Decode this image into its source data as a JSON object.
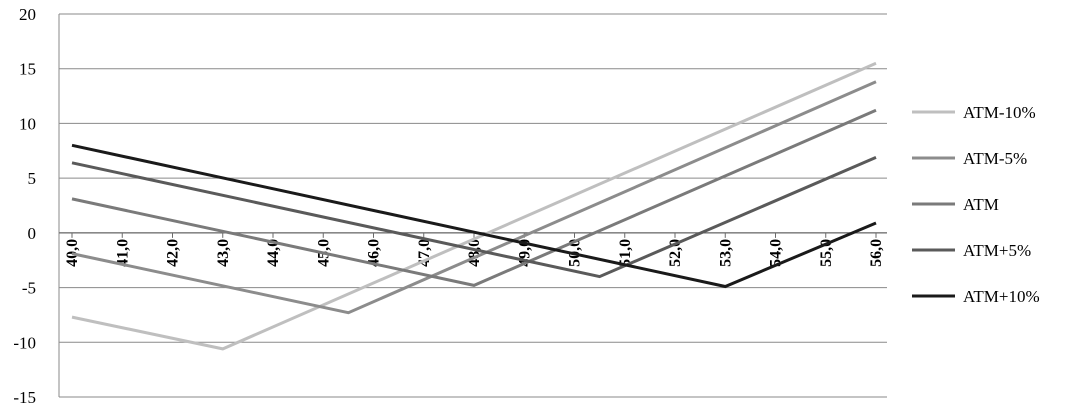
{
  "chart_data": {
    "type": "line",
    "title": "",
    "xlabel": "",
    "ylabel": "",
    "x": [
      40,
      41,
      42,
      43,
      44,
      45,
      46,
      47,
      48,
      49,
      50,
      51,
      52,
      53,
      54,
      55,
      56
    ],
    "x_tick_labels": [
      "40,0",
      "41,0",
      "42,0",
      "43,0",
      "44,0",
      "45,0",
      "46,0",
      "47,0",
      "48,0",
      "49,0",
      "50,0",
      "51,0",
      "52,0",
      "53,0",
      "54,0",
      "55,0",
      "56,0"
    ],
    "y_tick_labels": [
      "20",
      "15",
      "10",
      "5",
      "0",
      "-5",
      "-10",
      "-15"
    ],
    "xlim": [
      40,
      56
    ],
    "ylim": [
      -15,
      20
    ],
    "grid": "horizontal",
    "legend_position": "right",
    "series": [
      {
        "name": "ATM-10%",
        "color": "#bfbfbf",
        "points": [
          [
            40.0,
            -7.7
          ],
          [
            43.0,
            -10.6
          ],
          [
            56.0,
            15.5
          ]
        ]
      },
      {
        "name": "ATM-5%",
        "color": "#8c8c8c",
        "points": [
          [
            40.0,
            -1.9
          ],
          [
            45.5,
            -7.3
          ],
          [
            56.0,
            13.8
          ]
        ]
      },
      {
        "name": "ATM",
        "color": "#7a7a7a",
        "points": [
          [
            40.0,
            3.1
          ],
          [
            48.0,
            -4.8
          ],
          [
            56.0,
            11.2
          ]
        ]
      },
      {
        "name": "ATM+5%",
        "color": "#5a5a5a",
        "points": [
          [
            40.0,
            6.4
          ],
          [
            50.5,
            -4.0
          ],
          [
            56.0,
            6.9
          ]
        ]
      },
      {
        "name": "ATM+10%",
        "color": "#1a1a1a",
        "points": [
          [
            40.0,
            8.0
          ],
          [
            53.0,
            -4.9
          ],
          [
            56.0,
            0.9
          ]
        ]
      }
    ]
  }
}
